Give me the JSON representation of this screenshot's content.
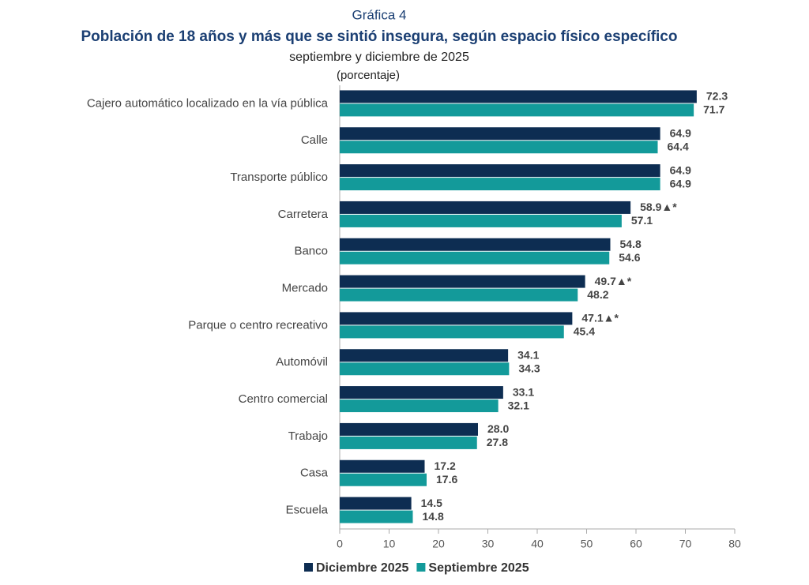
{
  "chart_data": {
    "type": "hbar",
    "chart_label": "Gráfica 4",
    "title": "Población de 18 años y más que se sintió insegura, según espacio físico específico",
    "subtitle": "septiembre y diciembre de 2025",
    "unit_label": "(porcentaje)",
    "categories": [
      "Cajero automático localizado en la vía pública",
      "Calle",
      "Transporte público",
      "Carretera",
      "Banco",
      "Mercado",
      "Parque o centro recreativo",
      "Automóvil",
      "Centro comercial",
      "Trabajo",
      "Casa",
      "Escuela"
    ],
    "series": [
      {
        "name": "Diciembre 2025",
        "color": "#0d2d52",
        "values": [
          72.3,
          64.9,
          64.9,
          58.9,
          54.8,
          49.7,
          47.1,
          34.1,
          33.1,
          28.0,
          17.2,
          14.5
        ],
        "value_labels": [
          "72.3",
          "64.9",
          "64.9",
          "58.9▲*",
          "54.8",
          "49.7▲*",
          "47.1▲*",
          "34.1",
          "33.1",
          "28.0",
          "17.2",
          "14.5"
        ]
      },
      {
        "name": "Septiembre 2025",
        "color": "#139a9a",
        "values": [
          71.7,
          64.4,
          64.9,
          57.1,
          54.6,
          48.2,
          45.4,
          34.3,
          32.1,
          27.8,
          17.6,
          14.8
        ],
        "value_labels": [
          "71.7",
          "64.4",
          "64.9",
          "57.1",
          "54.6",
          "48.2",
          "45.4",
          "34.3",
          "32.1",
          "27.8",
          "17.6",
          "14.8"
        ]
      }
    ],
    "xlim": [
      0,
      80
    ],
    "xticks": [
      0,
      10,
      20,
      30,
      40,
      50,
      60,
      70,
      80
    ]
  }
}
